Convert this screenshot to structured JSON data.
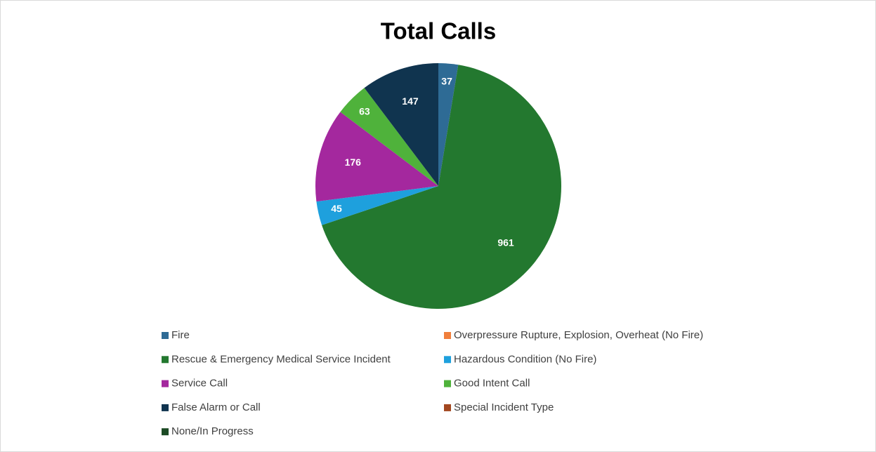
{
  "chart_data": {
    "type": "pie",
    "title": "Total Calls",
    "categories": [
      "Fire",
      "Overpressure Rupture, Explosion, Overheat (No Fire)",
      "Rescue & Emergency Medical Service Incident",
      "Hazardous Condition (No Fire)",
      "Service Call",
      "Good Intent Call",
      "False Alarm or Call",
      "Special Incident Type",
      "None/In Progress"
    ],
    "values": [
      37,
      0,
      961,
      45,
      176,
      63,
      147,
      0,
      0
    ],
    "colors": [
      "#2e6b95",
      "#f07f3c",
      "#23782f",
      "#1ea0dd",
      "#a4289e",
      "#4fb23b",
      "#10344f",
      "#a2471f",
      "#1c4a24"
    ],
    "legend": "bottom"
  }
}
